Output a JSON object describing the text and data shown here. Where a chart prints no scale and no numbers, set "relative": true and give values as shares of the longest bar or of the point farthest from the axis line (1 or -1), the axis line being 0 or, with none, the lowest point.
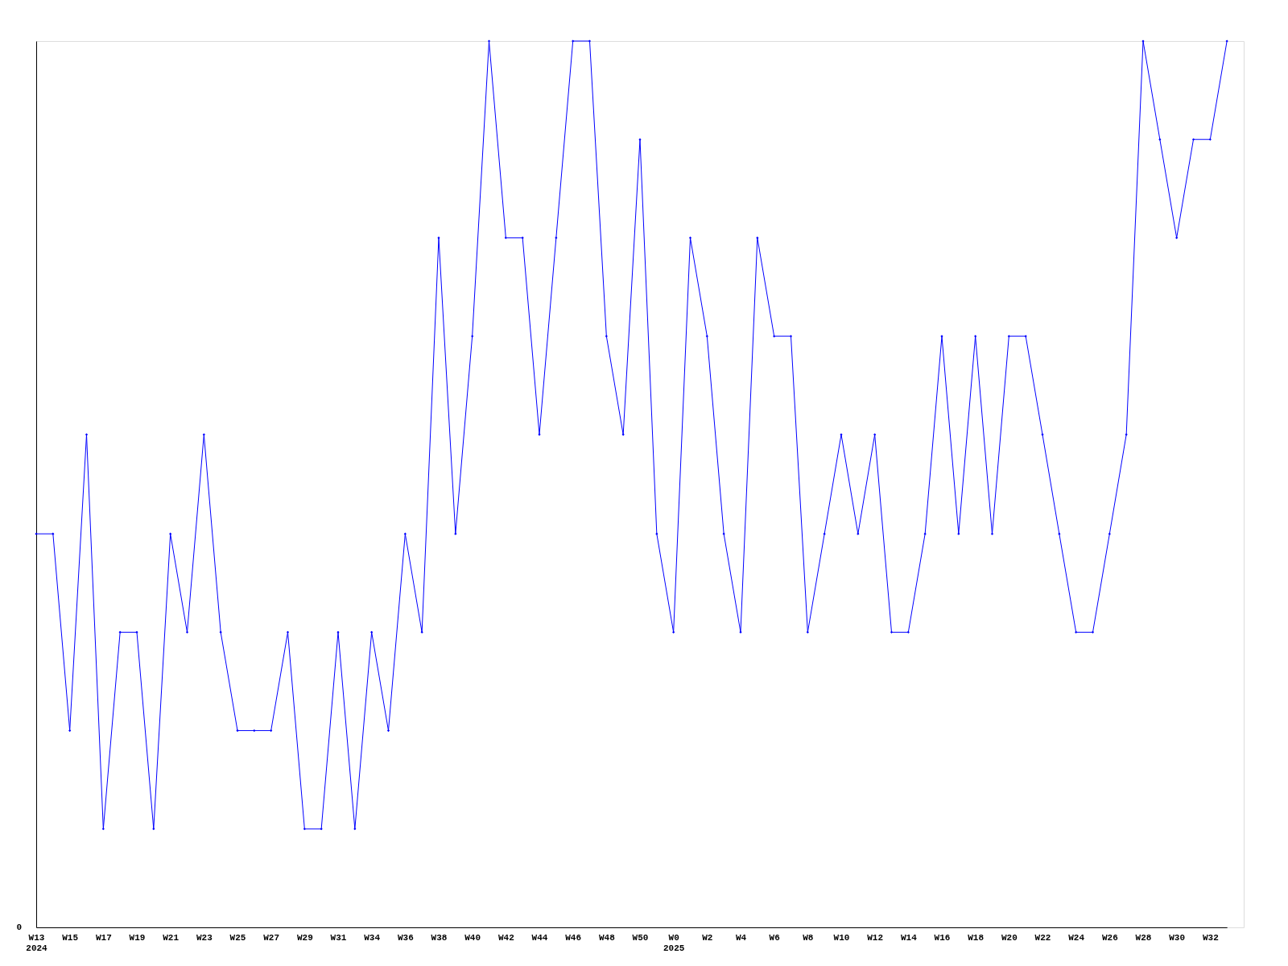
{
  "chart_data": {
    "type": "line",
    "relative": true,
    "annotations": [
      "0"
    ],
    "categories": [
      "W13\n2024",
      null,
      "W15",
      null,
      "W17",
      null,
      "W19",
      null,
      "W21",
      null,
      "W23",
      null,
      "W25",
      null,
      "W27",
      null,
      "W29",
      null,
      "W31",
      null,
      "W34",
      null,
      "W36",
      null,
      "W38",
      null,
      "W40",
      null,
      "W42",
      null,
      "W44",
      null,
      "W46",
      null,
      "W48",
      null,
      "W50",
      null,
      "W0\n2025",
      null,
      "W2",
      null,
      "W4",
      null,
      "W6",
      null,
      "W8",
      null,
      "W10",
      null,
      "W12",
      null,
      "W14",
      null,
      "W16",
      null,
      "W18",
      null,
      "W20",
      null,
      "W22",
      null,
      "W24",
      null,
      "W26",
      null,
      "W28",
      null,
      "W30",
      null,
      "W32",
      null
    ],
    "series": [
      {
        "color": "#0000ff",
        "values": [
          0.444,
          0.444,
          0.222,
          0.556,
          0.111,
          0.333,
          0.333,
          0.111,
          0.444,
          0.333,
          0.556,
          0.333,
          0.222,
          0.222,
          0.222,
          0.333,
          0.111,
          0.111,
          0.333,
          0.111,
          0.333,
          0.222,
          0.444,
          0.333,
          0.778,
          0.444,
          0.667,
          1,
          0.778,
          0.778,
          0.556,
          0.778,
          1,
          1,
          0.667,
          0.556,
          0.889,
          0.444,
          0.333,
          0.778,
          0.667,
          0.444,
          0.333,
          0.778,
          0.667,
          0.667,
          0.333,
          0.444,
          0.556,
          0.444,
          0.556,
          0.333,
          0.333,
          0.444,
          0.667,
          0.444,
          0.667,
          0.444,
          0.667,
          0.667,
          0.556,
          0.444,
          0.333,
          0.333,
          0.444,
          0.556,
          1,
          0.889,
          0.778,
          0.889,
          0.889,
          1
        ]
      }
    ],
    "marker": "diamond",
    "line_style": "solid"
  }
}
